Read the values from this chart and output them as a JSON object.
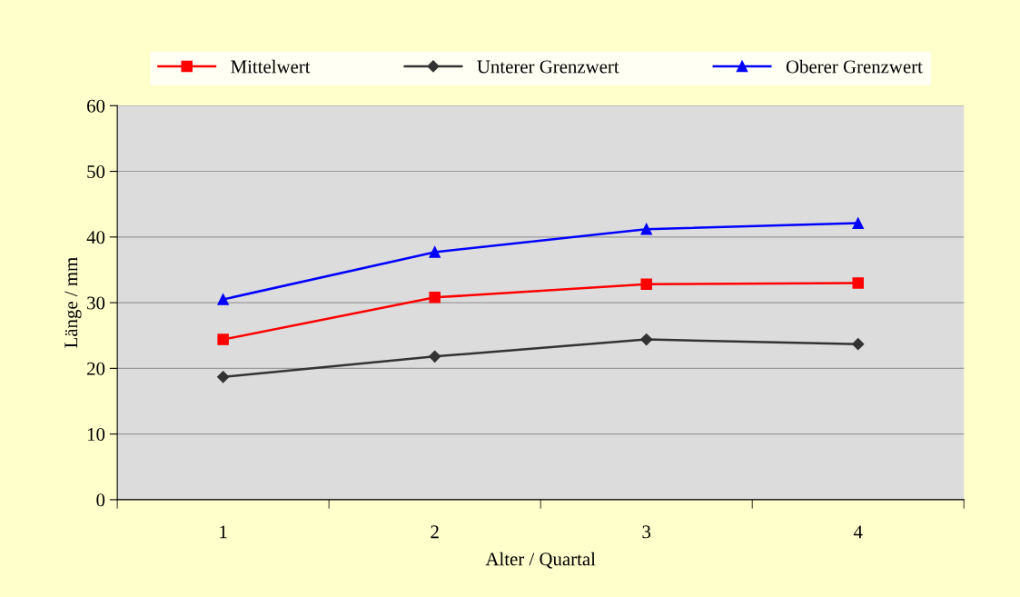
{
  "chart_data": {
    "type": "line",
    "xlabel": "Alter / Quartal",
    "ylabel": "Länge / mm",
    "categories": [
      "1",
      "2",
      "3",
      "4"
    ],
    "series": [
      {
        "name": "Mittelwert",
        "color": "#ff0000",
        "marker": "square",
        "values": [
          24.4,
          30.8,
          32.8,
          33.0
        ]
      },
      {
        "name": "Unterer Grenzwert",
        "color": "#333333",
        "marker": "diamond",
        "values": [
          18.7,
          21.8,
          24.4,
          23.7
        ]
      },
      {
        "name": "Oberer Grenzwert",
        "color": "#0000ff",
        "marker": "triangle",
        "values": [
          30.5,
          37.7,
          41.2,
          42.1
        ]
      }
    ],
    "ylim": [
      0,
      60
    ],
    "yticks": [
      0,
      10,
      20,
      30,
      40,
      50,
      60
    ],
    "grid": "y",
    "legend": "top",
    "line_style": "solid"
  }
}
